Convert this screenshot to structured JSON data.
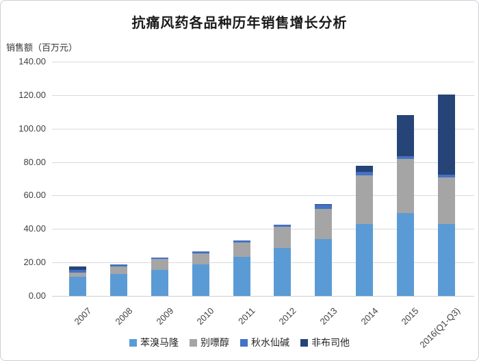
{
  "chart": {
    "title": "抗痛风药各品种历年销售增长分析",
    "y_axis_title": "销售额（百万元）"
  },
  "colors": {
    "gridline": "#D9D9D9",
    "axis_text": "#3F3F3F",
    "title_text": "#1A1A1A",
    "background": "#FFFFFF"
  },
  "chart_data": {
    "type": "bar",
    "stacked": true,
    "title": "抗痛风药各品种历年销售增长分析",
    "xlabel": "",
    "ylabel": "销售额（百万元）",
    "ylim": [
      0,
      140
    ],
    "y_tick_step": 20,
    "y_tick_labels": [
      "0.00",
      "20.00",
      "40.00",
      "60.00",
      "80.00",
      "100.00",
      "120.00",
      "140.00"
    ],
    "grid": true,
    "legend_position": "bottom",
    "categories": [
      "2007",
      "2008",
      "2009",
      "2010",
      "2011",
      "2012",
      "2013",
      "2014",
      "2015",
      "2016(Q1-Q3)"
    ],
    "series": [
      {
        "name": "苯溴马隆",
        "color": "#5B9BD5",
        "values": [
          11.5,
          13.0,
          15.5,
          19.0,
          23.5,
          28.5,
          34.0,
          43.0,
          49.5,
          43.0
        ]
      },
      {
        "name": "别嘌醇",
        "color": "#A5A5A5",
        "values": [
          2.5,
          4.8,
          6.5,
          6.5,
          8.5,
          13.0,
          18.0,
          29.0,
          32.5,
          28.0
        ]
      },
      {
        "name": "秋水仙碱",
        "color": "#4472C4",
        "values": [
          1.5,
          1.0,
          1.0,
          1.0,
          1.2,
          1.2,
          2.5,
          2.0,
          1.5,
          1.5
        ]
      },
      {
        "name": "非布司他",
        "color": "#264478",
        "values": [
          2.0,
          0.0,
          0.0,
          0.0,
          0.0,
          0.0,
          0.5,
          4.0,
          24.5,
          48.0
        ]
      }
    ],
    "totals": [
      17.5,
      18.8,
      23.0,
      26.5,
      33.2,
      42.7,
      55.0,
      78.0,
      108.0,
      120.5
    ]
  }
}
